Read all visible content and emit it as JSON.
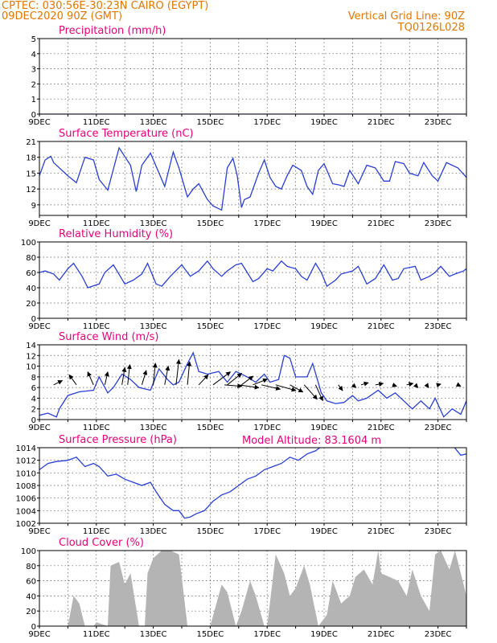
{
  "header": {
    "line1": "CPTEC:   030:56E-30:23N   CAIRO (EGYPT)",
    "line2": "09DEC2020 90Z (GMT)",
    "grid_note": "Vertical Grid Line: 90Z",
    "run_id": "TQ0126L028",
    "model_altitude": "Model Altitude: 83.1604 m"
  },
  "colors": {
    "header": "#e07800",
    "title": "#e8007a",
    "line": "#2a3fd6",
    "wind": "#000000",
    "cloud": "#b4b4b4"
  },
  "chart_data": [
    {
      "type": "line",
      "title": "Precipitation (mm/h)",
      "x_days": [
        9,
        24
      ],
      "ylim": [
        0,
        5
      ],
      "yticks": [
        0,
        1,
        2,
        3,
        4,
        5
      ],
      "xticks": [
        "9DEC",
        "11DEC",
        "13DEC",
        "15DEC",
        "17DEC",
        "19DEC",
        "21DEC",
        "23DEC"
      ],
      "x": [
        9,
        24
      ],
      "y": [
        0,
        0
      ]
    },
    {
      "type": "line",
      "title": "Surface Temperature (nC)",
      "x_days": [
        9,
        24
      ],
      "ylim": [
        7,
        21
      ],
      "yticks": [
        9,
        12,
        15,
        18,
        21
      ],
      "xticks": [
        "9DEC",
        "11DEC",
        "13DEC",
        "15DEC",
        "17DEC",
        "19DEC",
        "21DEC",
        "23DEC"
      ],
      "x": [
        9.0,
        9.2,
        9.4,
        9.5,
        10.0,
        10.3,
        10.6,
        10.9,
        11.1,
        11.4,
        11.8,
        12.2,
        12.4,
        12.6,
        12.9,
        13.4,
        13.7,
        13.9,
        14.2,
        14.4,
        14.6,
        14.9,
        15.1,
        15.4,
        15.6,
        15.8,
        15.95,
        16.1,
        16.2,
        16.4,
        16.7,
        16.9,
        17.1,
        17.3,
        17.5,
        17.7,
        17.9,
        18.2,
        18.4,
        18.6,
        18.8,
        19.0,
        19.3,
        19.5,
        19.7,
        19.9,
        20.2,
        20.5,
        20.8,
        21.1,
        21.3,
        21.5,
        21.8,
        22.0,
        22.3,
        22.5,
        22.8,
        23.0,
        23.3,
        23.5,
        23.7,
        24.0
      ],
      "y": [
        14.5,
        17.5,
        18.2,
        17.0,
        14.5,
        13.2,
        18.0,
        17.5,
        13.8,
        11.8,
        19.8,
        16.5,
        11.5,
        16.5,
        18.8,
        12.5,
        19.0,
        16.0,
        10.5,
        12.0,
        13.0,
        10.0,
        8.8,
        8.0,
        16.0,
        17.8,
        14.5,
        8.5,
        10.0,
        10.5,
        15.0,
        17.5,
        14.2,
        12.5,
        12.0,
        14.5,
        16.5,
        15.5,
        12.5,
        11.0,
        15.5,
        16.8,
        13.0,
        12.8,
        12.5,
        15.5,
        13.0,
        16.5,
        16.0,
        13.5,
        13.5,
        17.2,
        16.8,
        15.0,
        14.5,
        17.0,
        14.5,
        13.5,
        17.0,
        16.5,
        16.0,
        14.2
      ]
    },
    {
      "type": "line",
      "title": "Relative Humidity (%)",
      "x_days": [
        9,
        24
      ],
      "ylim": [
        0,
        100
      ],
      "yticks": [
        0,
        20,
        40,
        60,
        80,
        100
      ],
      "xticks": [
        "9DEC",
        "11DEC",
        "13DEC",
        "15DEC",
        "17DEC",
        "19DEC",
        "21DEC",
        "23DEC"
      ],
      "x": [
        9.0,
        9.2,
        9.5,
        9.7,
        10.0,
        10.2,
        10.5,
        10.7,
        11.1,
        11.3,
        11.6,
        12.0,
        12.3,
        12.6,
        12.8,
        13.1,
        13.3,
        13.6,
        14.0,
        14.3,
        14.6,
        14.9,
        15.1,
        15.4,
        15.6,
        15.9,
        16.1,
        16.3,
        16.5,
        16.7,
        17.0,
        17.2,
        17.5,
        17.7,
        18.0,
        18.2,
        18.4,
        18.7,
        18.9,
        19.1,
        19.4,
        19.6,
        20.0,
        20.2,
        20.5,
        20.8,
        21.1,
        21.4,
        21.6,
        21.8,
        22.2,
        22.4,
        22.7,
        22.9,
        23.1,
        23.4,
        23.6,
        23.9,
        24.0
      ],
      "y": [
        60,
        62,
        58,
        50,
        65,
        72,
        55,
        40,
        45,
        60,
        70,
        45,
        50,
        58,
        72,
        45,
        42,
        55,
        70,
        55,
        62,
        75,
        65,
        55,
        62,
        70,
        72,
        60,
        48,
        52,
        65,
        62,
        75,
        68,
        65,
        55,
        50,
        72,
        60,
        42,
        50,
        58,
        62,
        68,
        45,
        52,
        70,
        50,
        52,
        65,
        68,
        50,
        55,
        60,
        68,
        55,
        58,
        62,
        65
      ]
    },
    {
      "type": "line",
      "title": "Surface Wind (m/s)",
      "x_days": [
        9,
        24
      ],
      "ylim": [
        0,
        14
      ],
      "yticks": [
        0,
        2,
        4,
        6,
        8,
        10,
        12,
        14
      ],
      "xticks": [
        "9DEC",
        "11DEC",
        "13DEC",
        "15DEC",
        "17DEC",
        "19DEC",
        "21DEC",
        "23DEC"
      ],
      "x": [
        9.0,
        9.3,
        9.6,
        9.7,
        10.0,
        10.4,
        10.9,
        11.1,
        11.4,
        11.6,
        11.9,
        12.2,
        12.5,
        12.9,
        13.2,
        13.5,
        13.7,
        13.9,
        14.2,
        14.4,
        14.6,
        14.9,
        15.3,
        15.6,
        15.9,
        16.3,
        16.6,
        16.9,
        17.1,
        17.4,
        17.6,
        17.8,
        18.0,
        18.2,
        18.4,
        18.6,
        18.9,
        19.1,
        19.4,
        19.7,
        20.0,
        20.2,
        20.5,
        20.9,
        21.2,
        21.5,
        21.8,
        22.1,
        22.4,
        22.7,
        22.9,
        23.2,
        23.5,
        23.8,
        24.0
      ],
      "y": [
        0.8,
        1.2,
        0.5,
        2.0,
        4.5,
        5.2,
        5.5,
        8.0,
        5.0,
        6.0,
        8.5,
        7.5,
        6.0,
        5.5,
        9.5,
        7.5,
        6.5,
        7.0,
        10.5,
        12.5,
        9.0,
        8.5,
        9.0,
        7.0,
        9.0,
        8.0,
        7.0,
        8.5,
        7.0,
        7.5,
        12.0,
        11.5,
        8.0,
        8.0,
        8.0,
        10.5,
        5.0,
        3.5,
        3.0,
        3.2,
        4.5,
        3.5,
        4.0,
        5.5,
        4.0,
        5.0,
        3.5,
        2.0,
        3.5,
        2.0,
        4.0,
        0.5,
        2.0,
        1.0,
        3.5
      ],
      "arrows": [
        {
          "x": 9.5,
          "u": 1.2,
          "v": 0.6
        },
        {
          "x": 10.3,
          "u": -1.0,
          "v": 1.4
        },
        {
          "x": 10.9,
          "u": -0.8,
          "v": 1.8
        },
        {
          "x": 11.3,
          "u": 0.4,
          "v": 1.8
        },
        {
          "x": 11.9,
          "u": 0.4,
          "v": 2.4
        },
        {
          "x": 12.1,
          "u": 0.3,
          "v": 2.8
        },
        {
          "x": 12.6,
          "u": 0.6,
          "v": 2.0
        },
        {
          "x": 13.0,
          "u": 0.3,
          "v": 3.0
        },
        {
          "x": 13.4,
          "u": 0.5,
          "v": 2.6
        },
        {
          "x": 13.8,
          "u": 0.4,
          "v": 3.5
        },
        {
          "x": 14.2,
          "u": 0.3,
          "v": 3.2
        },
        {
          "x": 14.6,
          "u": 1.3,
          "v": 1.4
        },
        {
          "x": 15.1,
          "u": 2.4,
          "v": 1.8
        },
        {
          "x": 15.6,
          "u": 2.0,
          "v": 1.6
        },
        {
          "x": 16.1,
          "u": 1.6,
          "v": 1.2
        },
        {
          "x": 16.5,
          "u": 2.0,
          "v": 0.8
        },
        {
          "x": 15.5,
          "u": 2.4,
          "v": -0.2
        },
        {
          "x": 16.0,
          "u": 2.8,
          "v": -0.4
        },
        {
          "x": 16.8,
          "u": 2.6,
          "v": -0.6
        },
        {
          "x": 17.3,
          "u": 2.8,
          "v": -0.8
        },
        {
          "x": 17.8,
          "u": 1.8,
          "v": -1.0
        },
        {
          "x": 18.3,
          "u": 1.8,
          "v": -2.0
        },
        {
          "x": 18.7,
          "u": 1.0,
          "v": -2.2
        },
        {
          "x": 19.5,
          "u": 0.6,
          "v": -0.8
        },
        {
          "x": 20.0,
          "u": 0.5,
          "v": -0.4
        },
        {
          "x": 20.3,
          "u": 1.0,
          "v": 0.3
        },
        {
          "x": 20.8,
          "u": 1.1,
          "v": 0.2
        },
        {
          "x": 21.4,
          "u": 0.6,
          "v": -0.2
        },
        {
          "x": 21.9,
          "u": 0.9,
          "v": 0.2
        },
        {
          "x": 22.2,
          "u": 0.4,
          "v": -0.4
        },
        {
          "x": 22.6,
          "u": 0.3,
          "v": -0.4
        },
        {
          "x": 23.0,
          "u": 0.4,
          "v": 0.1
        },
        {
          "x": 23.7,
          "u": 0.4,
          "v": -0.2
        }
      ]
    },
    {
      "type": "line",
      "title": "Surface Pressure (hPa)",
      "x_days": [
        9,
        24
      ],
      "ylim": [
        1002,
        1014
      ],
      "yticks": [
        1002,
        1004,
        1006,
        1008,
        1010,
        1012,
        1014
      ],
      "xticks": [
        "9DEC",
        "11DEC",
        "13DEC",
        "15DEC",
        "17DEC",
        "19DEC",
        "21DEC",
        "23DEC"
      ],
      "x": [
        9.0,
        9.3,
        9.6,
        10.0,
        10.3,
        10.6,
        10.9,
        11.1,
        11.4,
        11.7,
        12.0,
        12.3,
        12.6,
        12.9,
        13.1,
        13.4,
        13.7,
        13.9,
        14.1,
        14.3,
        14.5,
        14.8,
        15.1,
        15.4,
        15.7,
        16.0,
        16.3,
        16.6,
        16.9,
        17.2,
        17.5,
        17.8,
        18.1,
        18.4,
        18.7,
        19.0,
        19.3,
        19.6,
        19.9,
        20.2,
        20.5,
        20.8,
        21.1,
        21.4,
        21.7,
        22.0,
        22.3,
        22.6,
        22.9,
        23.2,
        23.5,
        23.8,
        24.0
      ],
      "y": [
        1010.5,
        1011.5,
        1011.8,
        1012.0,
        1012.5,
        1011.0,
        1011.5,
        1011.0,
        1009.5,
        1009.8,
        1009.0,
        1008.5,
        1008.0,
        1008.5,
        1007.0,
        1005.0,
        1004.0,
        1004.0,
        1002.8,
        1003.0,
        1003.5,
        1004.0,
        1005.5,
        1006.5,
        1007.0,
        1008.0,
        1009.0,
        1009.5,
        1010.5,
        1011.0,
        1011.5,
        1012.5,
        1012.0,
        1013.0,
        1013.5,
        1014.5,
        1014.8,
        1014.2,
        1014.5,
        1015.0,
        1014.8,
        1015.0,
        1015.5,
        1015.2,
        1015.0,
        1015.5,
        1015.5,
        1015.0,
        1015.2,
        1015.0,
        1014.5,
        1012.8,
        1013.0
      ]
    },
    {
      "type": "bar",
      "title": "Cloud Cover (%)",
      "x_days": [
        9,
        24
      ],
      "ylim": [
        0,
        100
      ],
      "yticks": [
        0,
        20,
        40,
        60,
        80,
        100
      ],
      "xticks": [
        "9DEC",
        "11DEC",
        "13DEC",
        "15DEC",
        "17DEC",
        "19DEC",
        "21DEC",
        "23DEC"
      ],
      "x": [
        9.0,
        10.0,
        10.2,
        10.4,
        10.6,
        10.9,
        11.0,
        11.4,
        11.5,
        11.8,
        12.0,
        12.2,
        12.5,
        12.7,
        12.8,
        13.0,
        13.3,
        13.6,
        13.9,
        14.0,
        14.2,
        14.5,
        15.0,
        15.4,
        15.6,
        15.9,
        16.1,
        16.4,
        16.6,
        16.9,
        17.0,
        17.3,
        17.6,
        17.8,
        18.0,
        18.3,
        18.5,
        18.8,
        19.1,
        19.3,
        19.6,
        19.9,
        20.1,
        20.4,
        20.7,
        20.9,
        21.0,
        21.3,
        21.6,
        21.9,
        22.1,
        22.4,
        22.7,
        22.9,
        23.1,
        23.4,
        23.6,
        23.9,
        24.0
      ],
      "values": [
        0,
        0,
        40,
        30,
        0,
        0,
        5,
        0,
        80,
        85,
        55,
        70,
        0,
        0,
        70,
        90,
        100,
        100,
        95,
        65,
        0,
        0,
        0,
        55,
        45,
        0,
        20,
        60,
        40,
        0,
        0,
        95,
        70,
        40,
        50,
        80,
        55,
        0,
        15,
        60,
        30,
        40,
        65,
        75,
        55,
        100,
        70,
        65,
        60,
        40,
        75,
        40,
        20,
        95,
        100,
        75,
        100,
        55,
        40
      ]
    }
  ]
}
